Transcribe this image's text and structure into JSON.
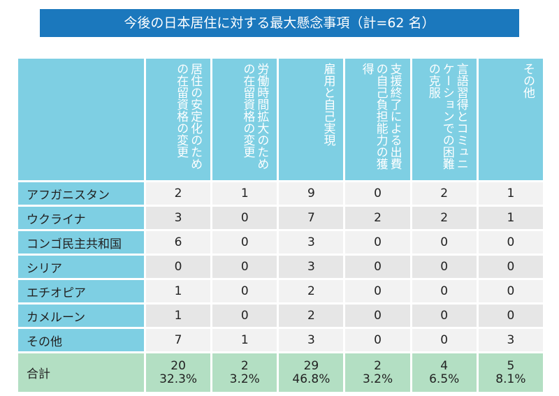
{
  "title": "今後の日本居住に対する最大懸念事項（計=62 名）",
  "table": {
    "columns": [
      "居住の安定化のための在留資格の変更",
      "労働時間拡大のための在留資格の変更",
      "雇用と自己実現",
      "支援終了による出費の自己負担能力の獲得",
      "言語習得とコミュニケーションでの困難の克服",
      "その他"
    ],
    "rows": [
      {
        "label": "アフガニスタン",
        "values": [
          2,
          1,
          9,
          0,
          2,
          1
        ]
      },
      {
        "label": "ウクライナ",
        "values": [
          3,
          0,
          7,
          2,
          2,
          1
        ]
      },
      {
        "label": "コンゴ民主共和国",
        "values": [
          6,
          0,
          3,
          0,
          0,
          0
        ]
      },
      {
        "label": "シリア",
        "values": [
          0,
          0,
          3,
          0,
          0,
          0
        ]
      },
      {
        "label": "エチオピア",
        "values": [
          1,
          0,
          2,
          0,
          0,
          0
        ]
      },
      {
        "label": "カメルーン",
        "values": [
          1,
          0,
          2,
          0,
          0,
          0
        ]
      },
      {
        "label": "その他",
        "values": [
          7,
          1,
          3,
          0,
          0,
          3
        ]
      }
    ],
    "total": {
      "label": "合計",
      "counts": [
        20,
        2,
        29,
        2,
        4,
        5
      ],
      "percents": [
        "32.3%",
        "3.2%",
        "46.8%",
        "3.2%",
        "6.5%",
        "8.1%"
      ]
    }
  }
}
